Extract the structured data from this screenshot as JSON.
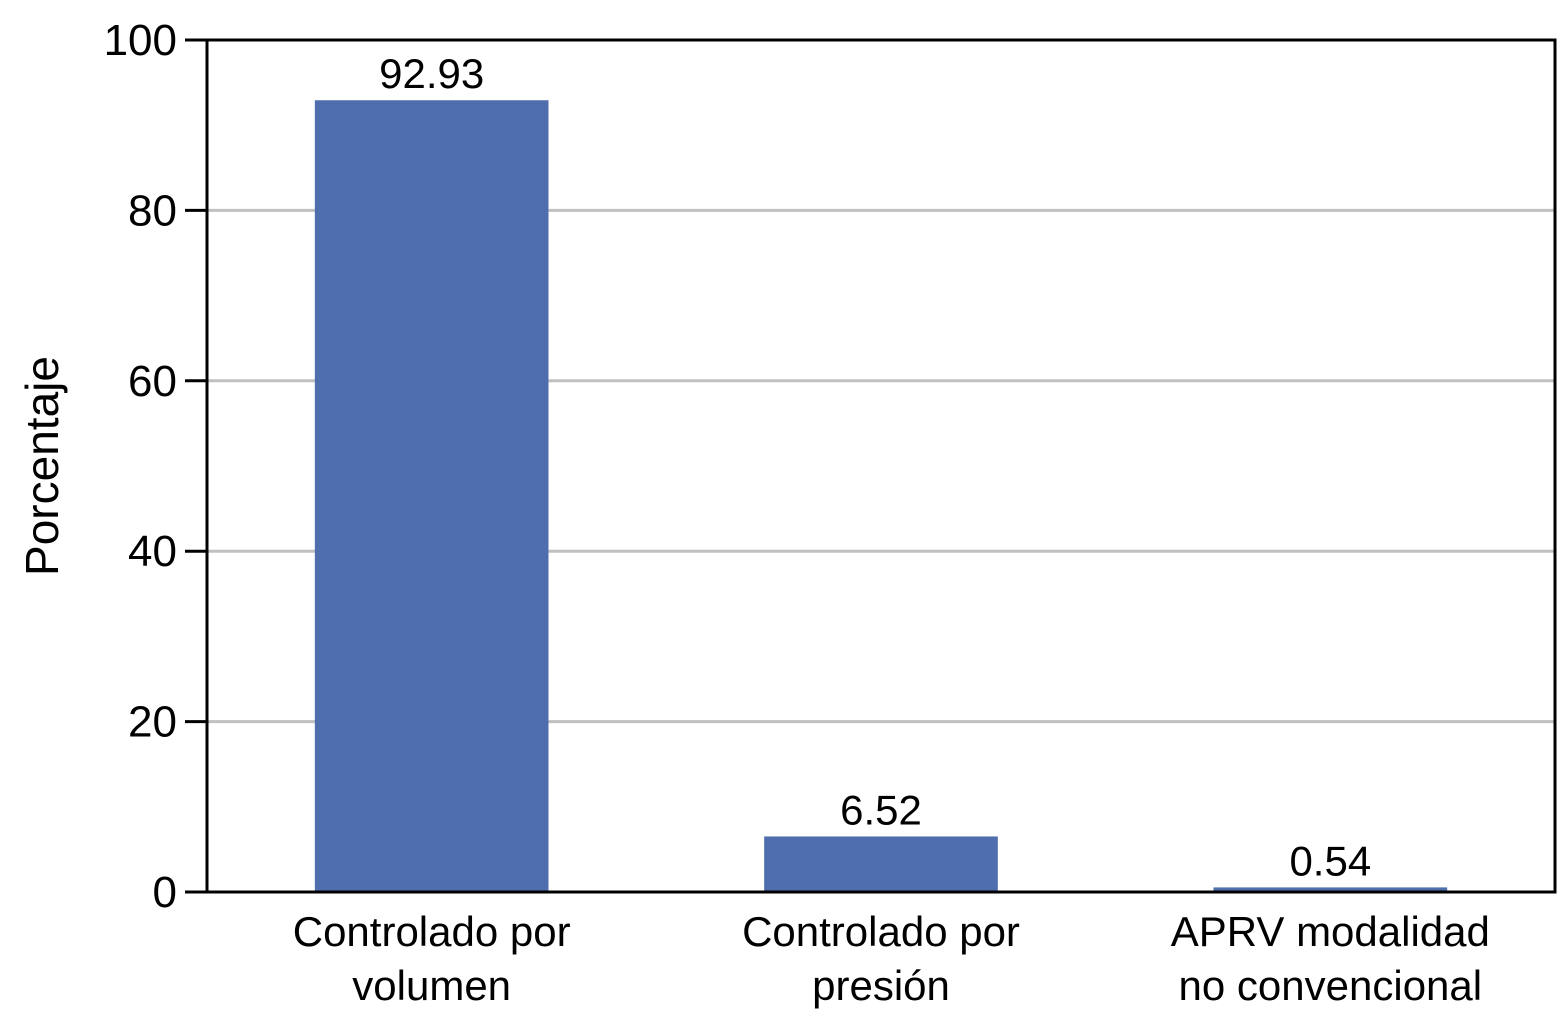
{
  "chart_data": {
    "type": "bar",
    "categories": [
      [
        "Controlado por",
        "volumen"
      ],
      [
        "Controlado por",
        "presión"
      ],
      [
        "APRV modalidad",
        "no convencional"
      ]
    ],
    "values": [
      92.93,
      6.52,
      0.54
    ],
    "value_labels": [
      "92.93",
      "6.52",
      "0.54"
    ],
    "title": "",
    "xlabel": "",
    "ylabel": "Porcentaje",
    "ylim": [
      0,
      100
    ],
    "yticks": [
      0,
      20,
      40,
      60,
      80,
      100
    ],
    "grid": true,
    "legend": "none",
    "colors": {
      "bar": "#4f6eae",
      "grid": "#c0c0c0",
      "axis": "#000000",
      "text": "#000000"
    }
  }
}
